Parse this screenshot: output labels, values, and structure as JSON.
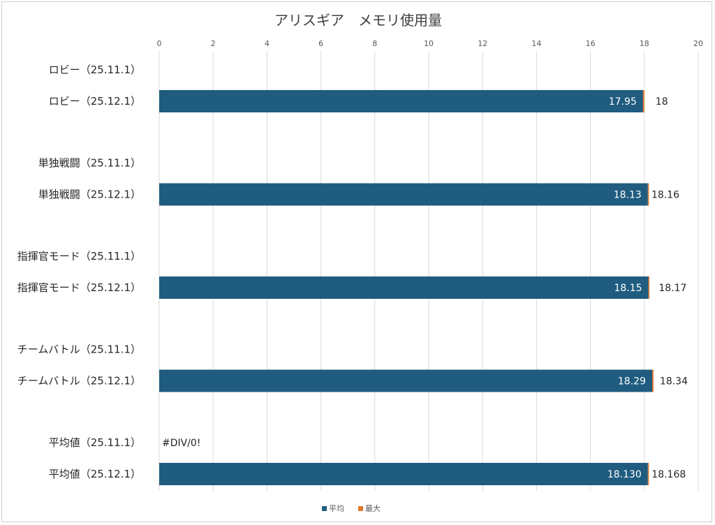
{
  "chart_data": {
    "type": "bar",
    "orientation": "horizontal",
    "stacked": true,
    "title": "アリスギア　メモリ使用量",
    "xlim": [
      0,
      20
    ],
    "x_ticks": [
      "0",
      "2",
      "4",
      "6",
      "8",
      "10",
      "12",
      "14",
      "16",
      "18",
      "20"
    ],
    "grid": true,
    "legend_position": "bottom",
    "categories": [
      "ロビー（25.11.1）",
      "ロビー（25.12.1）",
      "単独戦闘（25.11.1）",
      "単独戦闘（25.12.1）",
      "指揮官モード（25.11.1）",
      "指揮官モード（25.12.1）",
      "チームバトル（25.11.1）",
      "チームバトル（25.12.1）",
      "平均値（25.11.1）",
      "平均値（25.12.1）"
    ],
    "series": [
      {
        "name": "平均",
        "color": "#1f5c7f",
        "values": [
          null,
          17.95,
          null,
          18.13,
          null,
          18.15,
          null,
          18.29,
          null,
          18.13
        ],
        "labels": [
          "",
          "17.95",
          "",
          "18.13",
          "",
          "18.15",
          "",
          "18.29",
          "",
          "18.130"
        ]
      },
      {
        "name": "最大",
        "color": "#e2762f",
        "values": [
          null,
          0.05,
          null,
          0.03,
          null,
          0.02,
          null,
          0.05,
          null,
          0.038
        ],
        "labels": [
          "",
          "18",
          "",
          "18.16",
          "",
          "18.17",
          "",
          "18.34",
          "#DIV/0!",
          "18.168"
        ]
      }
    ]
  }
}
